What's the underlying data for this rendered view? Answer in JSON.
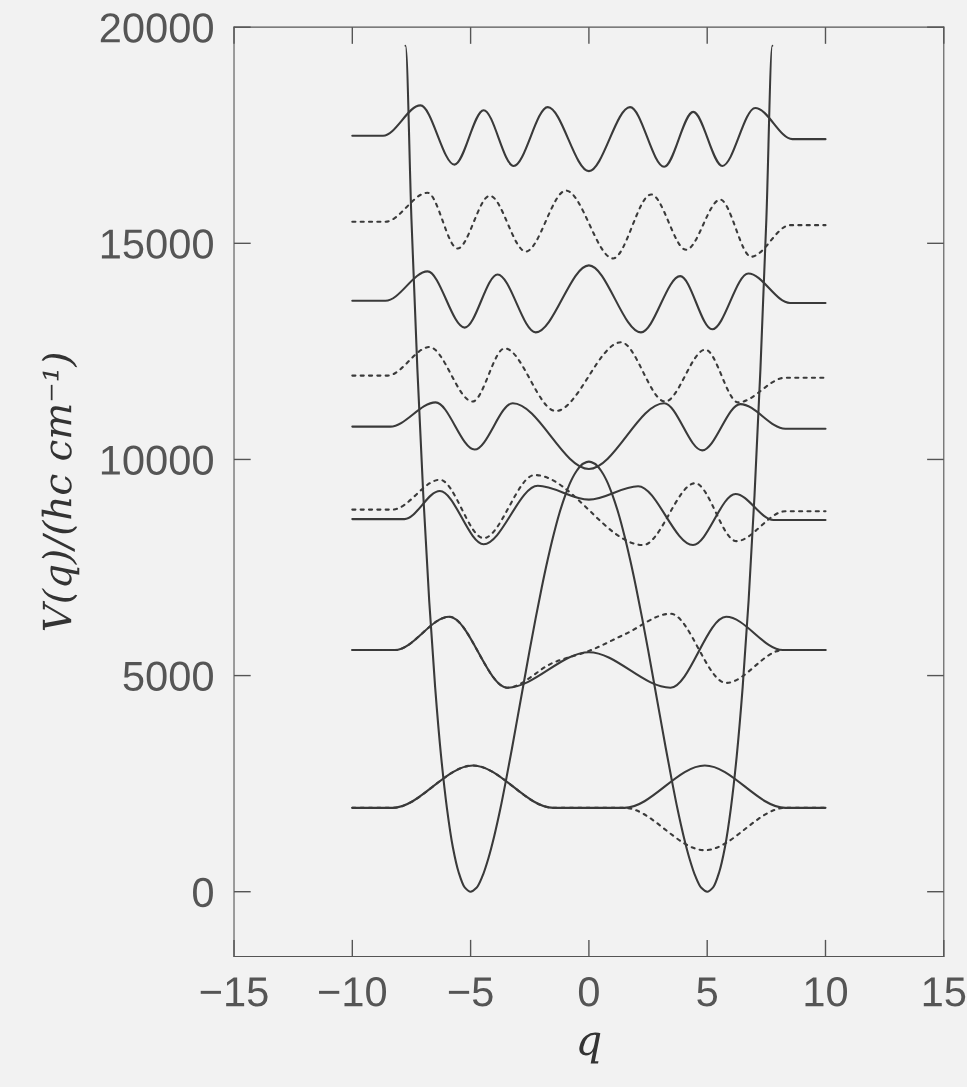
{
  "chart_data": {
    "type": "line",
    "xlabel": "q",
    "ylabel": "V(q)/(hc cm⁻¹)",
    "xlim": [
      -15,
      15
    ],
    "ylim": [
      -1500,
      20000
    ],
    "xticks": [
      -15,
      -10,
      -5,
      0,
      5,
      10,
      15
    ],
    "yticks": [
      0,
      5000,
      10000,
      15000,
      20000
    ],
    "grid": false,
    "legend": false,
    "marker": "none",
    "series": [
      {
        "color": "#3a3a3a",
        "line_style": "solid",
        "x": [
          -7.75,
          -7.5,
          -7.25,
          -7.0,
          -6.75,
          -6.5,
          -6.25,
          -6.0,
          -5.75,
          -5.5,
          -5.25,
          -5.0,
          -4.75,
          -4.5,
          -4.25,
          -4.0,
          -3.75,
          -3.5,
          -3.25,
          -3.0,
          -2.75,
          -2.5,
          -2.25,
          -2.0,
          -1.75,
          -1.5,
          -1.25,
          -1.0,
          -0.75,
          -0.5,
          -0.25,
          0,
          0.25,
          0.5,
          0.75,
          1.0,
          1.25,
          1.5,
          1.75,
          2.0,
          2.25,
          2.5,
          2.75,
          3.0,
          3.25,
          3.5,
          3.75,
          4.0,
          4.25,
          4.5,
          4.75,
          5.0,
          5.25,
          5.5,
          5.75,
          6.0,
          6.25,
          6.5,
          6.75,
          7.0,
          7.25,
          7.5,
          7.75
        ],
        "values": [
          19570,
          15550,
          12090,
          9170,
          6730,
          4740,
          3150,
          1930,
          1030,
          440,
          100,
          0,
          90,
          360,
          770,
          1290,
          1900,
          2590,
          3320,
          4080,
          4840,
          5600,
          6330,
          7020,
          7660,
          8240,
          8750,
          9170,
          9510,
          9750,
          9900,
          9950,
          9900,
          9750,
          9510,
          9170,
          8750,
          8240,
          7660,
          7020,
          6330,
          5600,
          4840,
          4080,
          3320,
          2590,
          1900,
          1290,
          770,
          360,
          90,
          0,
          100,
          440,
          1030,
          1930,
          3150,
          4740,
          6730,
          9170,
          12090,
          15550,
          19570
        ]
      },
      {
        "color": "#3a3a3a",
        "line_style": "solid",
        "x": [
          -10,
          -8.3,
          -4.9,
          -1.5,
          1.5,
          4.9,
          8.3,
          10
        ],
        "values": [
          1940,
          1940,
          2920,
          1940,
          1940,
          2920,
          1940,
          1940
        ]
      },
      {
        "color": "#3a3a3a",
        "line_style": "dotted",
        "x": [
          -10,
          -8.3,
          -4.9,
          -1.5,
          1.5,
          4.9,
          8.3,
          10
        ],
        "values": [
          1940,
          1940,
          2920,
          1940,
          1940,
          960,
          1940,
          1940
        ]
      },
      {
        "color": "#3a3a3a",
        "line_style": "solid",
        "x": [
          -10,
          -8.2,
          -5.9,
          -3.45,
          0,
          3.45,
          5.8,
          8.2,
          10
        ],
        "values": [
          5590,
          5590,
          6360,
          4720,
          5540,
          4720,
          6360,
          5590,
          5590
        ]
      },
      {
        "color": "#3a3a3a",
        "line_style": "dotted",
        "x": [
          -10,
          -8.2,
          -5.9,
          -3.45,
          -1.5,
          0,
          1.5,
          3.45,
          5.8,
          8.2,
          10
        ],
        "values": [
          5590,
          5590,
          6360,
          4720,
          5300,
          5570,
          5950,
          6430,
          4830,
          5590,
          5590
        ]
      },
      {
        "color": "#3a3a3a",
        "line_style": "solid",
        "x": [
          -10,
          -7.8,
          -6.3,
          -4.45,
          -2.16,
          0,
          2.08,
          4.4,
          6.2,
          7.8,
          10
        ],
        "values": [
          8620,
          8620,
          9270,
          8040,
          9390,
          9070,
          9380,
          8020,
          9200,
          8600,
          8600
        ]
      },
      {
        "color": "#3a3a3a",
        "line_style": "dotted",
        "x": [
          -10,
          -8.3,
          -6.3,
          -4.45,
          -2.29,
          2.29,
          4.49,
          6.23,
          8.3,
          10
        ],
        "values": [
          8840,
          8840,
          9530,
          8180,
          9640,
          8020,
          9450,
          8110,
          8800,
          8800
        ]
      },
      {
        "color": "#3a3a3a",
        "line_style": "solid",
        "x": [
          -10,
          -8.4,
          -6.48,
          -4.83,
          -3.22,
          0,
          3.18,
          4.79,
          6.4,
          8.3,
          10
        ],
        "values": [
          10760,
          10760,
          11320,
          10230,
          11300,
          9780,
          11300,
          10210,
          11280,
          10710,
          10710
        ]
      },
      {
        "color": "#3a3a3a",
        "line_style": "dotted",
        "x": [
          -10,
          -8.5,
          -6.74,
          -4.92,
          -3.56,
          -1.4,
          1.36,
          3.22,
          4.92,
          6.31,
          8.3,
          10
        ],
        "values": [
          11940,
          11940,
          12600,
          11340,
          12570,
          11120,
          12710,
          11340,
          12540,
          11320,
          11890,
          11890
        ]
      },
      {
        "color": "#3a3a3a",
        "line_style": "solid",
        "x": [
          -10,
          -8.6,
          -6.82,
          -5.25,
          -3.86,
          -2.25,
          0,
          2.2,
          3.86,
          5.21,
          6.74,
          8.5,
          10
        ],
        "values": [
          13670,
          13670,
          14350,
          13050,
          14280,
          12940,
          14490,
          12940,
          14240,
          13010,
          14300,
          13620,
          13620
        ]
      },
      {
        "color": "#3a3a3a",
        "line_style": "dotted",
        "x": [
          -10,
          -8.6,
          -6.82,
          -5.55,
          -4.19,
          -2.67,
          -0.97,
          1.02,
          2.63,
          4.11,
          5.55,
          6.86,
          8.5,
          10
        ],
        "values": [
          15500,
          15500,
          16170,
          14880,
          16100,
          14810,
          16220,
          14650,
          16130,
          14850,
          16010,
          14690,
          15420,
          15420
        ]
      },
      {
        "color": "#3a3a3a",
        "line_style": "solid",
        "x": [
          -10,
          -8.7,
          -7.12,
          -5.68,
          -4.45,
          -3.18,
          -1.74,
          0,
          1.74,
          3.18,
          4.41,
          5.64,
          7.03,
          8.6,
          10
        ],
        "values": [
          17490,
          17490,
          18190,
          16820,
          18080,
          16790,
          18150,
          16670,
          18150,
          16770,
          18040,
          16790,
          18130,
          17410,
          17410
        ]
      }
    ]
  }
}
